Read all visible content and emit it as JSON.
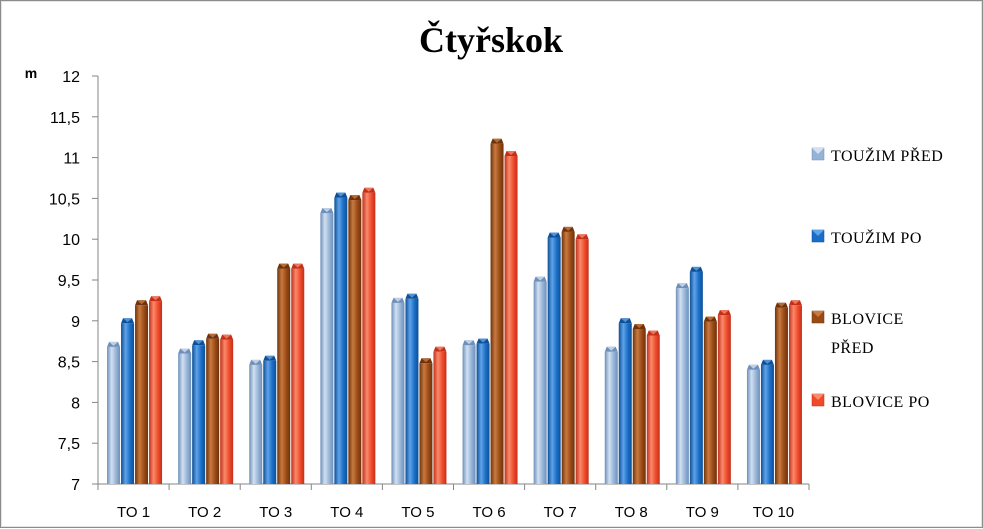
{
  "chart_data": {
    "type": "bar",
    "title": "Čtyřskok",
    "ylabel": "m",
    "xlabel": "",
    "ylim": [
      7,
      12
    ],
    "ytick_step": 0.5,
    "ytick_labels": [
      "7",
      "7,5",
      "8",
      "8,5",
      "9",
      "9,5",
      "10",
      "10,5",
      "11",
      "11,5",
      "12"
    ],
    "grid": false,
    "legend_position": "right",
    "categories": [
      "TO 1",
      "TO 2",
      "TO 3",
      "TO 4",
      "TO 5",
      "TO 6",
      "TO 7",
      "TO 8",
      "TO 9",
      "TO 10"
    ],
    "series": [
      {
        "name": "TOUŽIM PŘED",
        "legend_lines": [
          "TOUŽIM PŘED"
        ],
        "color": "#95b3d7",
        "light": "#d2e0f1",
        "dark": "#6d8fb9",
        "values": [
          8.68,
          8.6,
          8.46,
          10.32,
          9.22,
          8.7,
          9.48,
          8.62,
          9.4,
          8.4
        ]
      },
      {
        "name": "TOUŽIM PO",
        "legend_lines": [
          "TOUŽIM PO"
        ],
        "color": "#1a6ec7",
        "light": "#5fa3e8",
        "dark": "#0e4f96",
        "values": [
          8.97,
          8.7,
          8.51,
          10.51,
          9.27,
          8.72,
          10.02,
          8.97,
          9.6,
          8.46
        ]
      },
      {
        "name": "BLOVICE PŘED",
        "legend_lines": [
          "BLOVICE",
          "PŘED"
        ],
        "color": "#9a4a16",
        "light": "#c97a3e",
        "dark": "#6e320c",
        "values": [
          9.19,
          8.78,
          9.64,
          10.48,
          8.48,
          11.17,
          10.09,
          8.9,
          8.99,
          9.16
        ]
      },
      {
        "name": "BLOVICE PO",
        "legend_lines": [
          "BLOVICE PO"
        ],
        "color": "#ef4a2a",
        "light": "#f98a6c",
        "dark": "#c2301a",
        "values": [
          9.24,
          8.77,
          9.64,
          10.57,
          8.62,
          11.02,
          10.0,
          8.82,
          9.07,
          9.19
        ]
      }
    ]
  }
}
